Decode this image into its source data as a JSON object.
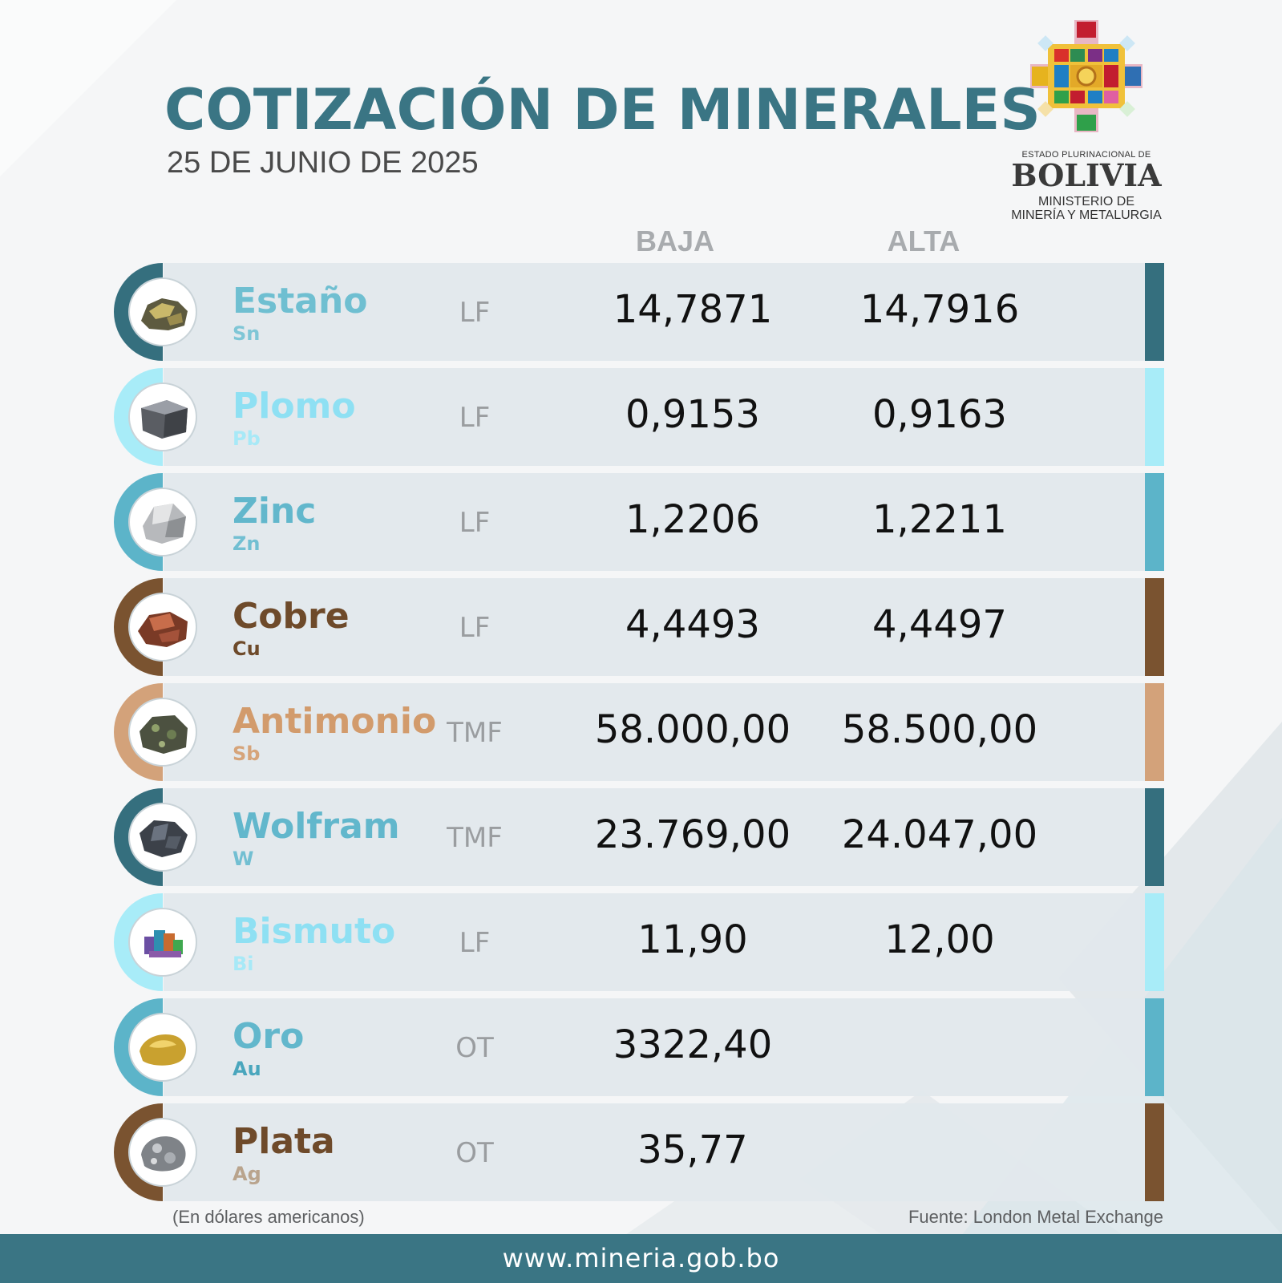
{
  "header": {
    "title": "COTIZACIÓN DE MINERALES",
    "date": "25 DE JUNIO DE 2025"
  },
  "logo": {
    "line1": "ESTADO PLURINACIONAL DE",
    "line2": "BOLIVIA",
    "line3": "MINISTERIO DE",
    "line4": "MINERÍA Y METALURGIA"
  },
  "columns": {
    "baja": "BAJA",
    "alta": "ALTA"
  },
  "rows": [
    {
      "name": "Estaño",
      "symbol": "Sn",
      "unit": "LF",
      "baja": "14,7871",
      "alta": "14,7916",
      "name_color": "#6fbfd1",
      "symbol_color": "#7fc6d6",
      "accent": "#356f7e",
      "mineral": "tin-ore"
    },
    {
      "name": "Plomo",
      "symbol": "Pb",
      "unit": "LF",
      "baja": "0,9153",
      "alta": "0,9163",
      "name_color": "#8ee0f3",
      "symbol_color": "#a7e9f7",
      "accent": "#a8ecf8",
      "mineral": "lead-ore"
    },
    {
      "name": "Zinc",
      "symbol": "Zn",
      "unit": "LF",
      "baja": "1,2206",
      "alta": "1,2211",
      "name_color": "#62b7cc",
      "symbol_color": "#72bfd2",
      "accent": "#5cb4c9",
      "mineral": "zinc-ore"
    },
    {
      "name": "Cobre",
      "symbol": "Cu",
      "unit": "LF",
      "baja": "4,4493",
      "alta": "4,4497",
      "name_color": "#6e4a2a",
      "symbol_color": "#6e4a2a",
      "accent": "#7a5330",
      "mineral": "copper-ore"
    },
    {
      "name": "Antimonio",
      "symbol": "Sb",
      "unit": "TMF",
      "baja": "58.000,00",
      "alta": "58.500,00",
      "name_color": "#d29b6c",
      "symbol_color": "#d6a47a",
      "accent": "#d3a27a",
      "mineral": "antimony-ore"
    },
    {
      "name": "Wolfram",
      "symbol": "W",
      "unit": "TMF",
      "baja": "23.769,00",
      "alta": "24.047,00",
      "name_color": "#62b7cc",
      "symbol_color": "#72bfd2",
      "accent": "#356f7e",
      "mineral": "wolfram-ore"
    },
    {
      "name": "Bismuto",
      "symbol": "Bi",
      "unit": "LF",
      "baja": "11,90",
      "alta": "12,00",
      "name_color": "#8ee0f3",
      "symbol_color": "#a7e9f7",
      "accent": "#a8ecf8",
      "mineral": "bismuth-crystal"
    },
    {
      "name": "Oro",
      "symbol": "Au",
      "unit": "OT",
      "baja": "3322,40",
      "alta": "",
      "name_color": "#62b7cc",
      "symbol_color": "#4aa6bd",
      "accent": "#5cb4c9",
      "mineral": "gold-nugget"
    },
    {
      "name": "Plata",
      "symbol": "Ag",
      "unit": "OT",
      "baja": "35,77",
      "alta": "",
      "name_color": "#6e4a2a",
      "symbol_color": "#b9a48d",
      "accent": "#7a5330",
      "mineral": "silver-ore"
    }
  ],
  "footnote": "(En dólares americanos)",
  "source": "Fuente: London Metal Exchange",
  "footer": {
    "url": "www.mineria.gob.bo"
  },
  "colors": {
    "brand": "#3a7584",
    "row_bg": "#e2e8ec"
  }
}
